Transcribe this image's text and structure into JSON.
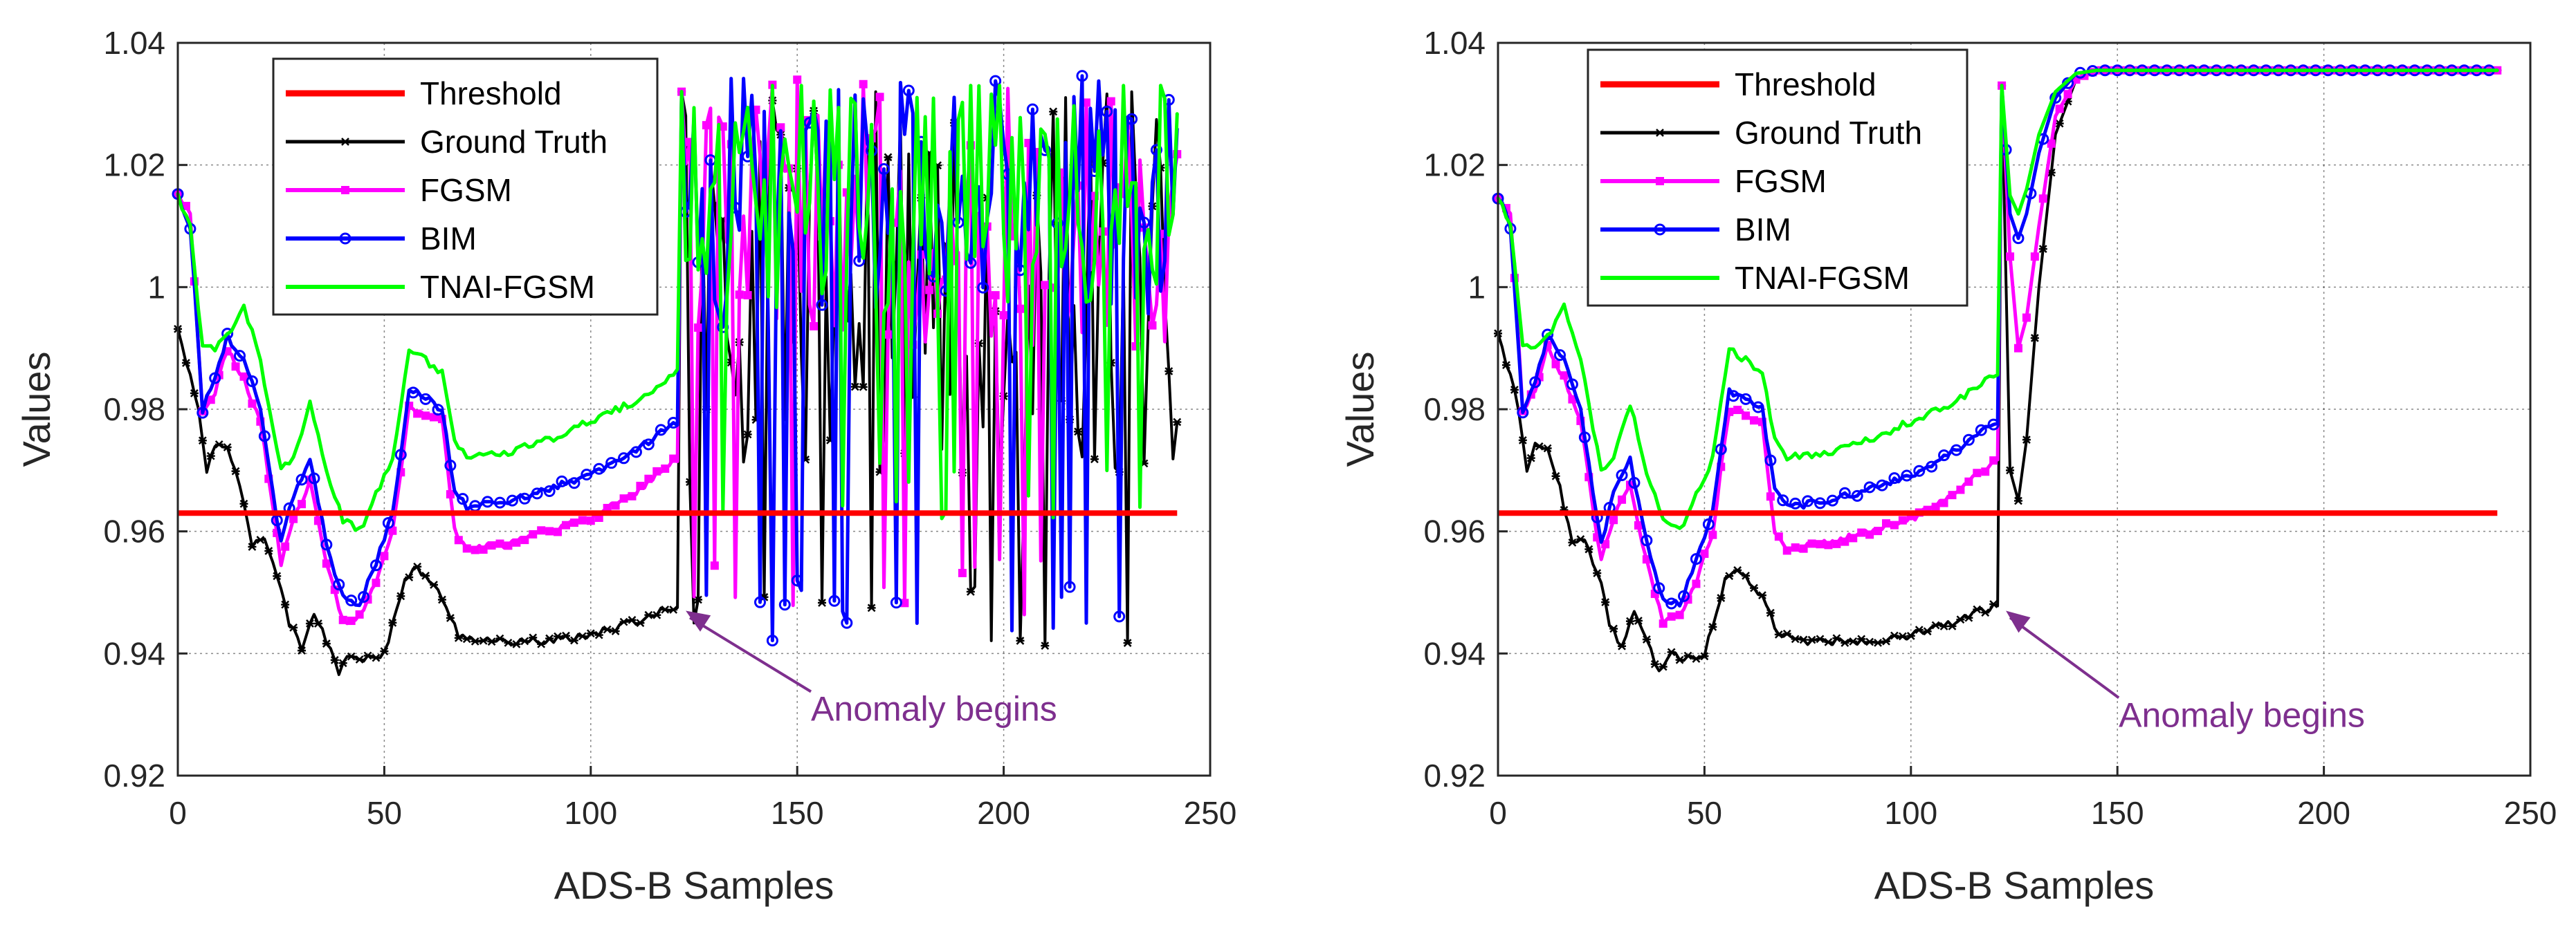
{
  "colors": {
    "threshold": "#ff0000",
    "ground_truth": "#000000",
    "fgsm": "#ff00ff",
    "bim": "#0000ff",
    "tnai_fgsm": "#00ff00",
    "annotation": "#7e2f8e"
  },
  "chart_data": [
    {
      "type": "line",
      "xlabel": "ADS-B Samples",
      "ylabel": "Values",
      "xlim": [
        0,
        250
      ],
      "ylim": [
        0.92,
        1.04
      ],
      "xticks": [
        0,
        50,
        100,
        150,
        200,
        250
      ],
      "xtick_labels": [
        "0",
        "50",
        "100",
        "150",
        "200",
        "250"
      ],
      "yticks": [
        0.92,
        0.94,
        0.96,
        0.98,
        1.0,
        1.02,
        1.04
      ],
      "ytick_labels": [
        "0.92",
        "0.94",
        "0.96",
        "0.98",
        "1",
        "1.02",
        "1.04"
      ],
      "grid": true,
      "legend_position": "top-left",
      "threshold": 0.963,
      "anomaly_start": 122,
      "num_samples": 243,
      "after_anomaly": "oscillating",
      "annotation": {
        "text": "Anomaly begins",
        "x": 123,
        "y": 0.947,
        "text_x": 155,
        "text_y": 0.929
      },
      "series": [
        {
          "name": "Threshold",
          "style": "flat",
          "value": 0.963
        },
        {
          "name": "Ground Truth",
          "key": [
            [
              0,
              0.993
            ],
            [
              5,
              0.98
            ],
            [
              7,
              0.97
            ],
            [
              9,
              0.974
            ],
            [
              12,
              0.974
            ],
            [
              15,
              0.967
            ],
            [
              18,
              0.958
            ],
            [
              21,
              0.959
            ],
            [
              25,
              0.951
            ],
            [
              27,
              0.945
            ],
            [
              30,
              0.941
            ],
            [
              33,
              0.947
            ],
            [
              36,
              0.942
            ],
            [
              39,
              0.937
            ],
            [
              42,
              0.94
            ],
            [
              45,
              0.939
            ],
            [
              50,
              0.94
            ],
            [
              55,
              0.952
            ],
            [
              58,
              0.954
            ],
            [
              62,
              0.951
            ],
            [
              65,
              0.948
            ],
            [
              68,
              0.943
            ],
            [
              75,
              0.942
            ],
            [
              90,
              0.942
            ],
            [
              100,
              0.943
            ],
            [
              110,
              0.945
            ],
            [
              121,
              0.948
            ]
          ],
          "post_base": 1.0,
          "post_amp": 0.034,
          "post_min": 0.941,
          "post_max": 1.032
        },
        {
          "name": "FGSM",
          "key": [
            [
              0,
              1.015
            ],
            [
              3,
              1.012
            ],
            [
              6,
              0.98
            ],
            [
              9,
              0.983
            ],
            [
              12,
              0.99
            ],
            [
              16,
              0.985
            ],
            [
              20,
              0.978
            ],
            [
              25,
              0.955
            ],
            [
              28,
              0.962
            ],
            [
              32,
              0.968
            ],
            [
              36,
              0.955
            ],
            [
              40,
              0.945
            ],
            [
              44,
              0.946
            ],
            [
              48,
              0.952
            ],
            [
              52,
              0.96
            ],
            [
              56,
              0.98
            ],
            [
              60,
              0.979
            ],
            [
              64,
              0.978
            ],
            [
              67,
              0.96
            ],
            [
              70,
              0.957
            ],
            [
              80,
              0.958
            ],
            [
              90,
              0.96
            ],
            [
              100,
              0.962
            ],
            [
              110,
              0.966
            ],
            [
              121,
              0.972
            ]
          ],
          "post_base": 1.012,
          "post_amp": 0.022,
          "post_min": 0.946,
          "post_max": 1.035
        },
        {
          "name": "BIM",
          "key": [
            [
              0,
              1.015
            ],
            [
              3,
              1.01
            ],
            [
              6,
              0.98
            ],
            [
              9,
              0.985
            ],
            [
              12,
              0.992
            ],
            [
              16,
              0.988
            ],
            [
              20,
              0.98
            ],
            [
              25,
              0.958
            ],
            [
              28,
              0.966
            ],
            [
              32,
              0.972
            ],
            [
              36,
              0.958
            ],
            [
              40,
              0.949
            ],
            [
              44,
              0.948
            ],
            [
              48,
              0.955
            ],
            [
              52,
              0.963
            ],
            [
              56,
              0.983
            ],
            [
              60,
              0.982
            ],
            [
              64,
              0.98
            ],
            [
              67,
              0.967
            ],
            [
              70,
              0.964
            ],
            [
              80,
              0.965
            ],
            [
              90,
              0.967
            ],
            [
              100,
              0.969
            ],
            [
              110,
              0.973
            ],
            [
              121,
              0.978
            ]
          ],
          "post_base": 1.014,
          "post_amp": 0.021,
          "post_min": 0.942,
          "post_max": 1.035
        },
        {
          "name": "TNAI-FGSM",
          "key": [
            [
              0,
              1.015
            ],
            [
              3,
              1.01
            ],
            [
              6,
              0.99
            ],
            [
              9,
              0.99
            ],
            [
              13,
              0.993
            ],
            [
              16,
              0.997
            ],
            [
              20,
              0.988
            ],
            [
              25,
              0.97
            ],
            [
              28,
              0.972
            ],
            [
              32,
              0.981
            ],
            [
              36,
              0.97
            ],
            [
              40,
              0.962
            ],
            [
              44,
              0.96
            ],
            [
              48,
              0.966
            ],
            [
              52,
              0.972
            ],
            [
              56,
              0.99
            ],
            [
              60,
              0.988
            ],
            [
              64,
              0.986
            ],
            [
              67,
              0.975
            ],
            [
              70,
              0.972
            ],
            [
              80,
              0.973
            ],
            [
              90,
              0.975
            ],
            [
              100,
              0.978
            ],
            [
              110,
              0.981
            ],
            [
              121,
              0.986
            ]
          ],
          "post_base": 1.015,
          "post_amp": 0.02,
          "post_min": 0.962,
          "post_max": 1.033
        }
      ]
    },
    {
      "type": "line",
      "xlabel": "ADS-B Samples",
      "ylabel": "Values",
      "xlim": [
        0,
        250
      ],
      "ylim": [
        0.92,
        1.04
      ],
      "xticks": [
        0,
        50,
        100,
        150,
        200,
        250
      ],
      "xtick_labels": [
        "0",
        "50",
        "100",
        "150",
        "200",
        "250"
      ],
      "yticks": [
        0.92,
        0.94,
        0.96,
        0.98,
        1.0,
        1.02,
        1.04
      ],
      "ytick_labels": [
        "0.92",
        "0.94",
        "0.96",
        "0.98",
        "1",
        "1.02",
        "1.04"
      ],
      "grid": true,
      "legend_position": "top-left",
      "threshold": 0.963,
      "anomaly_start": 122,
      "num_samples": 243,
      "after_anomaly": "saturating",
      "annotation": {
        "text": "Anomaly begins",
        "x": 123,
        "y": 0.947,
        "text_x": 152,
        "text_y": 0.928
      },
      "series": [
        {
          "name": "Threshold",
          "style": "flat",
          "value": 0.963
        },
        {
          "name": "Ground Truth",
          "key": [
            [
              0,
              0.993
            ],
            [
              5,
              0.98
            ],
            [
              7,
              0.97
            ],
            [
              9,
              0.974
            ],
            [
              12,
              0.974
            ],
            [
              15,
              0.967
            ],
            [
              18,
              0.958
            ],
            [
              21,
              0.959
            ],
            [
              25,
              0.951
            ],
            [
              27,
              0.945
            ],
            [
              30,
              0.941
            ],
            [
              33,
              0.947
            ],
            [
              36,
              0.942
            ],
            [
              39,
              0.937
            ],
            [
              42,
              0.94
            ],
            [
              45,
              0.939
            ],
            [
              50,
              0.94
            ],
            [
              55,
              0.952
            ],
            [
              58,
              0.954
            ],
            [
              62,
              0.951
            ],
            [
              65,
              0.948
            ],
            [
              68,
              0.943
            ],
            [
              75,
              0.942
            ],
            [
              90,
              0.942
            ],
            [
              100,
              0.943
            ],
            [
              110,
              0.945
            ],
            [
              121,
              0.948
            ],
            [
              122,
              1.033
            ],
            [
              124,
              0.97
            ],
            [
              126,
              0.965
            ],
            [
              128,
              0.975
            ],
            [
              131,
              1.0
            ],
            [
              135,
              1.025
            ],
            [
              140,
              1.034
            ],
            [
              145,
              1.0355
            ],
            [
              243,
              1.0355
            ]
          ]
        },
        {
          "name": "FGSM",
          "key": [
            [
              0,
              1.015
            ],
            [
              3,
              1.012
            ],
            [
              6,
              0.98
            ],
            [
              9,
              0.983
            ],
            [
              12,
              0.99
            ],
            [
              16,
              0.985
            ],
            [
              20,
              0.978
            ],
            [
              25,
              0.955
            ],
            [
              28,
              0.962
            ],
            [
              32,
              0.968
            ],
            [
              36,
              0.955
            ],
            [
              40,
              0.945
            ],
            [
              44,
              0.946
            ],
            [
              48,
              0.952
            ],
            [
              52,
              0.96
            ],
            [
              56,
              0.98
            ],
            [
              60,
              0.979
            ],
            [
              64,
              0.978
            ],
            [
              67,
              0.96
            ],
            [
              70,
              0.957
            ],
            [
              80,
              0.958
            ],
            [
              90,
              0.96
            ],
            [
              100,
              0.962
            ],
            [
              110,
              0.966
            ],
            [
              121,
              0.972
            ],
            [
              122,
              1.033
            ],
            [
              124,
              1.005
            ],
            [
              126,
              0.99
            ],
            [
              128,
              0.995
            ],
            [
              131,
              1.01
            ],
            [
              135,
              1.028
            ],
            [
              140,
              1.034
            ],
            [
              145,
              1.0355
            ],
            [
              243,
              1.0355
            ]
          ]
        },
        {
          "name": "BIM",
          "key": [
            [
              0,
              1.015
            ],
            [
              3,
              1.01
            ],
            [
              6,
              0.98
            ],
            [
              9,
              0.985
            ],
            [
              12,
              0.992
            ],
            [
              16,
              0.988
            ],
            [
              20,
              0.98
            ],
            [
              25,
              0.958
            ],
            [
              28,
              0.966
            ],
            [
              32,
              0.972
            ],
            [
              36,
              0.958
            ],
            [
              40,
              0.949
            ],
            [
              44,
              0.948
            ],
            [
              48,
              0.955
            ],
            [
              52,
              0.963
            ],
            [
              56,
              0.983
            ],
            [
              60,
              0.982
            ],
            [
              64,
              0.98
            ],
            [
              67,
              0.967
            ],
            [
              70,
              0.964
            ],
            [
              80,
              0.965
            ],
            [
              90,
              0.967
            ],
            [
              100,
              0.969
            ],
            [
              110,
              0.973
            ],
            [
              121,
              0.978
            ],
            [
              122,
              1.033
            ],
            [
              124,
              1.012
            ],
            [
              126,
              1.008
            ],
            [
              128,
              1.012
            ],
            [
              131,
              1.022
            ],
            [
              135,
              1.031
            ],
            [
              140,
              1.035
            ],
            [
              145,
              1.0355
            ],
            [
              243,
              1.0355
            ]
          ]
        },
        {
          "name": "TNAI-FGSM",
          "key": [
            [
              0,
              1.015
            ],
            [
              3,
              1.01
            ],
            [
              6,
              0.99
            ],
            [
              9,
              0.99
            ],
            [
              13,
              0.993
            ],
            [
              16,
              0.997
            ],
            [
              20,
              0.988
            ],
            [
              25,
              0.97
            ],
            [
              28,
              0.972
            ],
            [
              32,
              0.981
            ],
            [
              36,
              0.97
            ],
            [
              40,
              0.962
            ],
            [
              44,
              0.96
            ],
            [
              48,
              0.966
            ],
            [
              52,
              0.972
            ],
            [
              56,
              0.99
            ],
            [
              60,
              0.988
            ],
            [
              64,
              0.986
            ],
            [
              67,
              0.975
            ],
            [
              70,
              0.972
            ],
            [
              80,
              0.973
            ],
            [
              90,
              0.975
            ],
            [
              100,
              0.978
            ],
            [
              110,
              0.981
            ],
            [
              121,
              0.986
            ],
            [
              122,
              1.033
            ],
            [
              124,
              1.015
            ],
            [
              126,
              1.012
            ],
            [
              128,
              1.016
            ],
            [
              131,
              1.025
            ],
            [
              135,
              1.032
            ],
            [
              140,
              1.035
            ],
            [
              145,
              1.0355
            ],
            [
              243,
              1.0355
            ]
          ]
        }
      ]
    }
  ]
}
